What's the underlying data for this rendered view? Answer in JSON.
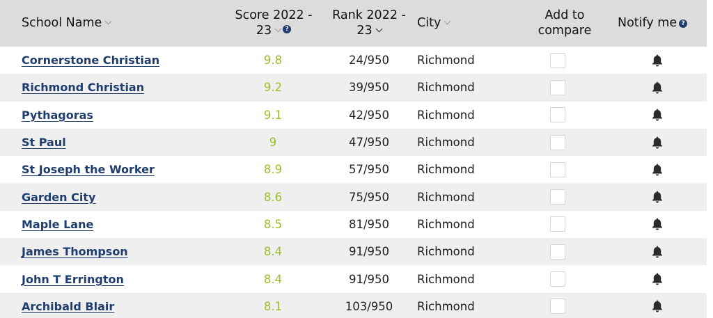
{
  "headers": {
    "school_name": "School Name",
    "score_line1": "Score 2022 -",
    "score_line2": "23",
    "rank_line1": "Rank 2022 -",
    "rank_line2": "23",
    "city": "City",
    "compare_line1": "Add to",
    "compare_line2": "compare",
    "notify": "Notify me",
    "help_glyph": "?"
  },
  "icons": {
    "sort": "chevron-down-icon",
    "help": "help-icon",
    "notify": "bell-icon"
  },
  "colors": {
    "link": "#1f3d6e",
    "score": "#9bbf2a",
    "header_bg": "#dcdcdc",
    "alt_row_bg": "#efefef"
  },
  "rows": [
    {
      "name": "Cornerstone Christian",
      "score": "9.8",
      "rank": "24/950",
      "city": "Richmond",
      "compare": false
    },
    {
      "name": "Richmond Christian",
      "score": "9.2",
      "rank": "39/950",
      "city": "Richmond",
      "compare": false
    },
    {
      "name": "Pythagoras",
      "score": "9.1",
      "rank": "42/950",
      "city": "Richmond",
      "compare": false
    },
    {
      "name": "St Paul",
      "score": "9",
      "rank": "47/950",
      "city": "Richmond",
      "compare": false
    },
    {
      "name": "St Joseph the Worker",
      "score": "8.9",
      "rank": "57/950",
      "city": "Richmond",
      "compare": false
    },
    {
      "name": "Garden City",
      "score": "8.6",
      "rank": "75/950",
      "city": "Richmond",
      "compare": false
    },
    {
      "name": "Maple Lane",
      "score": "8.5",
      "rank": "81/950",
      "city": "Richmond",
      "compare": false
    },
    {
      "name": "James Thompson",
      "score": "8.4",
      "rank": "91/950",
      "city": "Richmond",
      "compare": false
    },
    {
      "name": "John T Errington",
      "score": "8.4",
      "rank": "91/950",
      "city": "Richmond",
      "compare": false
    },
    {
      "name": "Archibald Blair",
      "score": "8.1",
      "rank": "103/950",
      "city": "Richmond",
      "compare": false
    }
  ]
}
